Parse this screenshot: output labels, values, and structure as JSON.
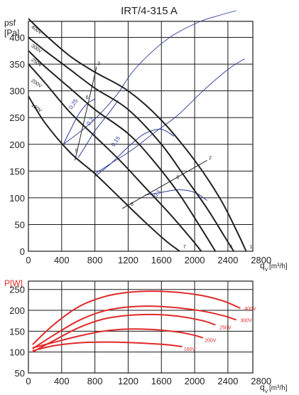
{
  "title": "IRT/4-315 A",
  "chart_data": [
    {
      "type": "line",
      "ylabel_main": "psf",
      "ylabel_unit": "[Pa]",
      "xlabel": "qv [m³/h]",
      "xlabel_q": "q",
      "xlabel_v": "v",
      "xlabel_unit": "[m³/h]",
      "xlim": [
        0,
        2700
      ],
      "ylim": [
        0,
        430
      ],
      "x_ticks": [
        0,
        400,
        800,
        1200,
        1600,
        2000,
        2400,
        2800
      ],
      "y_ticks": [
        0,
        50,
        100,
        150,
        200,
        250,
        300,
        350,
        400
      ],
      "x_tick_labels": [
        "0",
        "400",
        "800",
        "1200",
        "1600",
        "2000",
        "2400",
        "2800"
      ],
      "y_tick_labels": [
        "0",
        "50",
        "100",
        "150",
        "200",
        "250",
        "300",
        "350",
        "400"
      ],
      "grid": true,
      "series": [
        {
          "name": "400V",
          "x": [
            0,
            200,
            500,
            800,
            1200,
            1600,
            2000,
            2300,
            2500,
            2620
          ],
          "y": [
            435,
            405,
            365,
            335,
            300,
            245,
            170,
            100,
            40,
            0
          ],
          "label_x": 30,
          "label_y": 418
        },
        {
          "name": "300V",
          "x": [
            0,
            200,
            500,
            800,
            1200,
            1600,
            1900,
            2150,
            2350,
            2470
          ],
          "y": [
            400,
            375,
            340,
            305,
            265,
            200,
            135,
            80,
            30,
            0
          ],
          "label_x": 30,
          "label_y": 383
        },
        {
          "name": "250V",
          "x": [
            0,
            200,
            500,
            800,
            1200,
            1500,
            1800,
            2050,
            2250
          ],
          "y": [
            375,
            345,
            305,
            265,
            220,
            170,
            110,
            50,
            0
          ],
          "label_x": 30,
          "label_y": 357
        },
        {
          "name": "200V",
          "x": [
            0,
            200,
            500,
            800,
            1100,
            1400,
            1700,
            1950,
            2080
          ],
          "y": [
            350,
            315,
            260,
            215,
            170,
            120,
            70,
            25,
            0
          ],
          "label_x": 30,
          "label_y": 318
        },
        {
          "name": "160V",
          "x": [
            0,
            200,
            500,
            800,
            1100,
            1400,
            1650,
            1820
          ],
          "y": [
            290,
            240,
            185,
            145,
            100,
            55,
            20,
            0
          ],
          "label_x": 30,
          "label_y": 272
        }
      ],
      "efficiency_arcs": [
        {
          "label": "0,25",
          "x": [
            420,
            500,
            600,
            700,
            800
          ],
          "y": [
            200,
            225,
            255,
            275,
            285
          ],
          "label_x": 520,
          "label_y": 265
        },
        {
          "label": "0,2",
          "x": [
            600,
            700,
            800,
            900,
            1000,
            1080
          ],
          "y": [
            175,
            200,
            225,
            245,
            265,
            282
          ],
          "label_x": 735,
          "label_y": 235
        },
        {
          "label": "0,15",
          "x": [
            800,
            1000,
            1200,
            1400,
            1600,
            1750
          ],
          "y": [
            140,
            165,
            195,
            220,
            228,
            215
          ],
          "label_x": 1030,
          "label_y": 195
        },
        {
          "label": "0,1",
          "x": [
            1400,
            1600,
            1800,
            2000,
            2150
          ],
          "y": [
            105,
            110,
            115,
            110,
            95
          ],
          "label_x": 1540,
          "label_y": 100
        }
      ],
      "system_lines": [
        {
          "x": [
            420,
            750,
            1050,
            1250,
            1500,
            1750,
            2070,
            2270,
            2500
          ],
          "y": [
            200,
            240,
            290,
            335,
            375,
            405,
            430,
            440,
            450
          ]
        },
        {
          "x": [
            800,
            1000,
            1250,
            1500,
            1800,
            2100,
            2400,
            2600
          ],
          "y": [
            145,
            165,
            190,
            220,
            255,
            300,
            340,
            360
          ]
        }
      ],
      "operating_lines": [
        {
          "x": [
            560,
            820
          ],
          "y": [
            170,
            345
          ]
        },
        {
          "x": [
            1130,
            2150
          ],
          "y": [
            80,
            170
          ]
        }
      ],
      "points": [
        {
          "label": "1",
          "x": 2660,
          "y": 5
        },
        {
          "label": "2",
          "x": 2170,
          "y": 172
        },
        {
          "label": "3",
          "x": 830,
          "y": 348
        },
        {
          "label": "4",
          "x": 2420,
          "y": 5
        },
        {
          "label": "5",
          "x": 1780,
          "y": 135
        },
        {
          "label": "6",
          "x": 690,
          "y": 285
        },
        {
          "label": "7",
          "x": 1860,
          "y": 5
        },
        {
          "label": "8",
          "x": 1230,
          "y": 85
        },
        {
          "label": "9",
          "x": 560,
          "y": 185
        }
      ]
    },
    {
      "type": "line",
      "ylabel": "P[W]",
      "xlabel": "qv [m³/h]",
      "xlabel_q": "q",
      "xlabel_v": "v",
      "xlabel_unit": "[m³/h]",
      "xlim": [
        0,
        2700
      ],
      "ylim": [
        50,
        270
      ],
      "x_ticks": [
        0,
        400,
        800,
        1200,
        1600,
        2000,
        2400,
        2800
      ],
      "y_ticks": [
        50,
        100,
        150,
        200,
        250
      ],
      "x_tick_labels": [
        "0",
        "400",
        "800",
        "1200",
        "1600",
        "2000",
        "2400",
        "2800"
      ],
      "y_tick_labels": [
        "50",
        "100",
        "150",
        "200",
        "250"
      ],
      "grid": true,
      "series": [
        {
          "name": "400V",
          "x": [
            50,
            300,
            600,
            900,
            1200,
            1500,
            1800,
            2100,
            2350,
            2550
          ],
          "y": [
            118,
            165,
            208,
            232,
            243,
            246,
            243,
            235,
            222,
            205
          ],
          "label_x": 2600,
          "label_y": 205
        },
        {
          "name": "300V",
          "x": [
            50,
            300,
            600,
            900,
            1200,
            1500,
            1800,
            2100,
            2350,
            2500
          ],
          "y": [
            108,
            140,
            175,
            198,
            208,
            210,
            206,
            198,
            187,
            177
          ],
          "label_x": 2550,
          "label_y": 177
        },
        {
          "name": "250V",
          "x": [
            50,
            300,
            600,
            900,
            1200,
            1500,
            1800,
            2100,
            2250
          ],
          "y": [
            100,
            127,
            158,
            179,
            188,
            190,
            186,
            175,
            165
          ],
          "label_x": 2300,
          "label_y": 160
        },
        {
          "name": "200V",
          "x": [
            50,
            300,
            600,
            900,
            1200,
            1500,
            1800,
            2000,
            2100
          ],
          "y": [
            110,
            123,
            138,
            150,
            155,
            154,
            148,
            140,
            134
          ],
          "label_x": 2120,
          "label_y": 129
        },
        {
          "name": "160V",
          "x": [
            50,
            300,
            600,
            900,
            1200,
            1500,
            1700,
            1850
          ],
          "y": [
            103,
            115,
            122,
            124,
            123,
            120,
            117,
            113
          ],
          "label_x": 1870,
          "label_y": 108
        }
      ]
    }
  ],
  "colors": {
    "fan_curve": "#222222",
    "efficiency": "#2a3a9a",
    "power": "#e02a2a",
    "grid": "#1a1a1a",
    "power_axis_label": "#e02a2a"
  }
}
